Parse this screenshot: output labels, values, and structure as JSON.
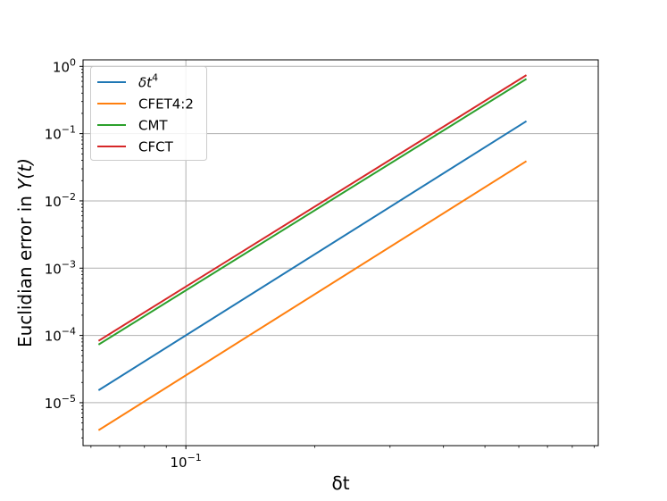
{
  "chart_data": {
    "type": "line",
    "title": "",
    "xlabel": "δt",
    "ylabel_prefix": "Euclidian error in ",
    "ylabel_var": "Y(t)",
    "x_scale": "log",
    "y_scale": "log",
    "xlim": [
      0.0575,
      0.92
    ],
    "ylim": [
      2.3e-06,
      1.25
    ],
    "grid": true,
    "legend_position": "upper-left",
    "x_major_ticks": [
      {
        "value": 0.1,
        "base": "10",
        "exp": "−1"
      }
    ],
    "x_minor_ticks": [
      0.06,
      0.07,
      0.08,
      0.09,
      0.2,
      0.3,
      0.4,
      0.5,
      0.6,
      0.7,
      0.8,
      0.9
    ],
    "y_major_ticks": [
      {
        "value": 1e-05,
        "base": "10",
        "exp": "−5"
      },
      {
        "value": 0.0001,
        "base": "10",
        "exp": "−4"
      },
      {
        "value": 0.001,
        "base": "10",
        "exp": "−3"
      },
      {
        "value": 0.01,
        "base": "10",
        "exp": "−2"
      },
      {
        "value": 0.1,
        "base": "10",
        "exp": "−1"
      },
      {
        "value": 1,
        "base": "10",
        "exp": "0"
      }
    ],
    "series": [
      {
        "name_base": "δt",
        "name_sup": "4",
        "color": "#1f77b4",
        "x": [
          0.0625,
          0.625
        ],
        "y": [
          1.53e-05,
          0.153
        ]
      },
      {
        "name": "CFET4:2",
        "color": "#ff7f0e",
        "x": [
          0.0625,
          0.625
        ],
        "y": [
          3.9e-06,
          0.039
        ]
      },
      {
        "name": "CMT",
        "color": "#2ca02c",
        "x": [
          0.0625,
          0.625
        ],
        "y": [
          7.3e-05,
          0.65
        ]
      },
      {
        "name": "CFCT",
        "color": "#d62728",
        "x": [
          0.0625,
          0.625
        ],
        "y": [
          8.3e-05,
          0.74
        ]
      }
    ]
  }
}
